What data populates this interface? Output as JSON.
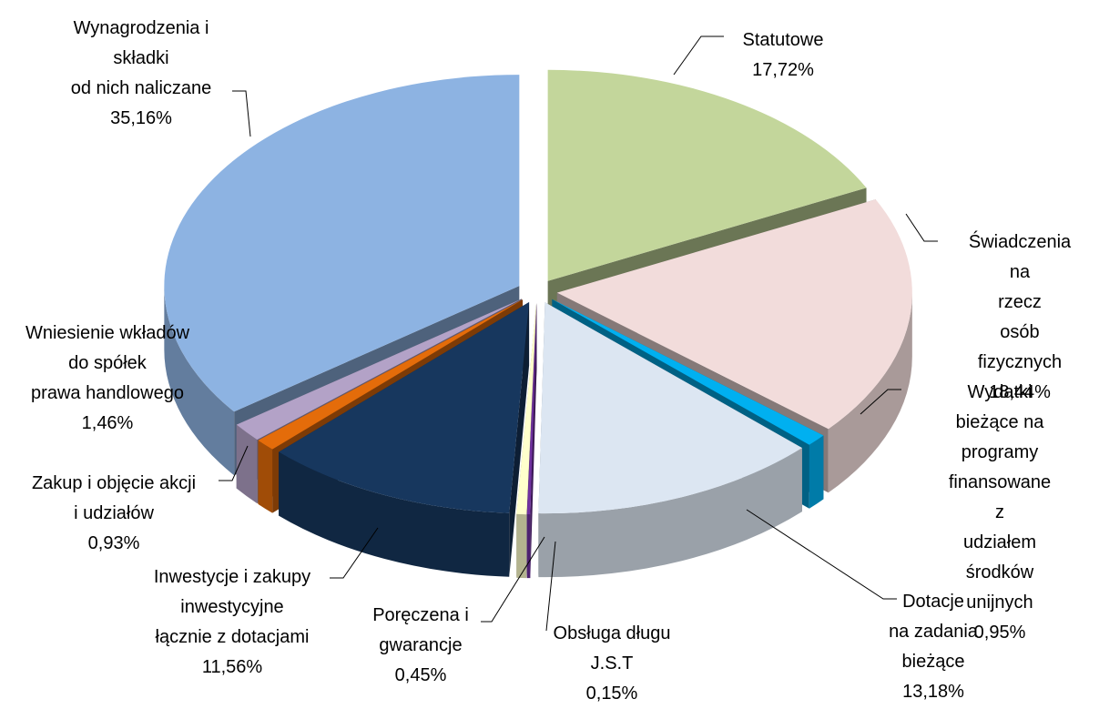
{
  "chart_data": {
    "type": "pie",
    "categories": [
      "Statutowe",
      "Świadczenia na\nrzecz\nosób fizycznych",
      "Wydatki bieżące na\nprogramy\nfinansowane z\nudziałem środków\nunijnych",
      "Dotacje\nna zadania\nbieżące",
      "Obsługa długu\nJ.S.T",
      "Poręczena i\ngwarancje",
      "Inwestycje i zakupy\ninwestycyjne\nłącznie z dotacjami",
      "Zakup i objęcie akcji\ni udziałów",
      "Wniesienie wkładów\ndo spółek\nprawa handlowego",
      "Wynagrodzenia i\nskładki\nod nich naliczane"
    ],
    "values": [
      17.72,
      18.44,
      0.95,
      13.18,
      0.15,
      0.45,
      11.56,
      0.93,
      1.46,
      35.16
    ],
    "value_labels": [
      "17,72%",
      "18,44%",
      "0,95%",
      "13,18%",
      "0,15%",
      "0,45%",
      "11,56%",
      "0,93%",
      "1,46%",
      "35,16%"
    ],
    "colors": [
      "#c3d69b",
      "#f2dcdb",
      "#00b0f0",
      "#dce6f2",
      "#7030a0",
      "#ffffcc",
      "#17375e",
      "#e46c0a",
      "#b3a2c7",
      "#8db3e2"
    ]
  }
}
